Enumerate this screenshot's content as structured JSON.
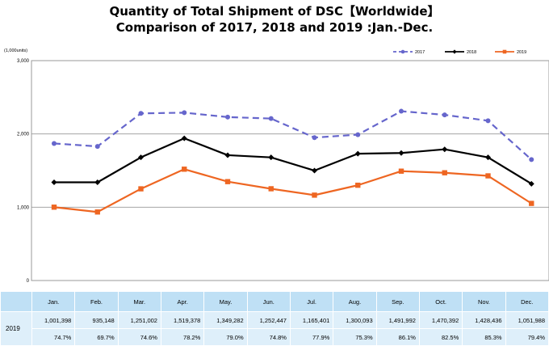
{
  "title": {
    "line1": "Quantity of Total Shipment of DSC【Worldwide】",
    "line2": "Comparison of 2017, 2018 and 2019 :Jan.-Dec."
  },
  "chart_data": {
    "type": "line",
    "unit_label": "(1,000units)",
    "ylim": [
      0,
      3000
    ],
    "yticks": [
      "0",
      "1,000",
      "2,000",
      "3,000"
    ],
    "categories": [
      "Jan.",
      "Feb.",
      "Mar.",
      "Apr.",
      "May.",
      "Jun.",
      "Jul.",
      "Aug.",
      "Sep.",
      "Oct.",
      "Nov.",
      "Dec."
    ],
    "legend_position": "top-right",
    "grid": true,
    "series": [
      {
        "name": "2017",
        "color": "#6666cc",
        "style": "dashed",
        "marker": "circle",
        "values": [
          1870,
          1830,
          2280,
          2290,
          2230,
          2210,
          1950,
          1990,
          2310,
          2260,
          2180,
          1650
        ]
      },
      {
        "name": "2018",
        "color": "#000000",
        "style": "solid",
        "marker": "diamond",
        "values": [
          1340,
          1340,
          1680,
          1940,
          1710,
          1680,
          1500,
          1730,
          1740,
          1790,
          1680,
          1320
        ]
      },
      {
        "name": "2019",
        "color": "#ee6622",
        "style": "solid",
        "marker": "square",
        "values": [
          1001,
          935,
          1251,
          1519,
          1349,
          1252,
          1165,
          1300,
          1492,
          1470,
          1428,
          1052
        ]
      }
    ]
  },
  "table": {
    "year": "2019",
    "headers": [
      "Jan.",
      "Feb.",
      "Mar.",
      "Apr.",
      "May.",
      "Jun.",
      "Jul.",
      "Aug.",
      "Sep.",
      "Oct.",
      "Nov.",
      "Dec."
    ],
    "values": [
      "1,001,398",
      "935,148",
      "1,251,002",
      "1,519,378",
      "1,349,282",
      "1,252,447",
      "1,165,401",
      "1,300,093",
      "1,491,992",
      "1,470,392",
      "1,428,436",
      "1,051,988"
    ],
    "percents": [
      "74.7%",
      "69.7%",
      "74.6%",
      "78.2%",
      "79.0%",
      "74.8%",
      "77.9%",
      "75.3%",
      "86.1%",
      "82.5%",
      "85.3%",
      "79.4%"
    ]
  }
}
